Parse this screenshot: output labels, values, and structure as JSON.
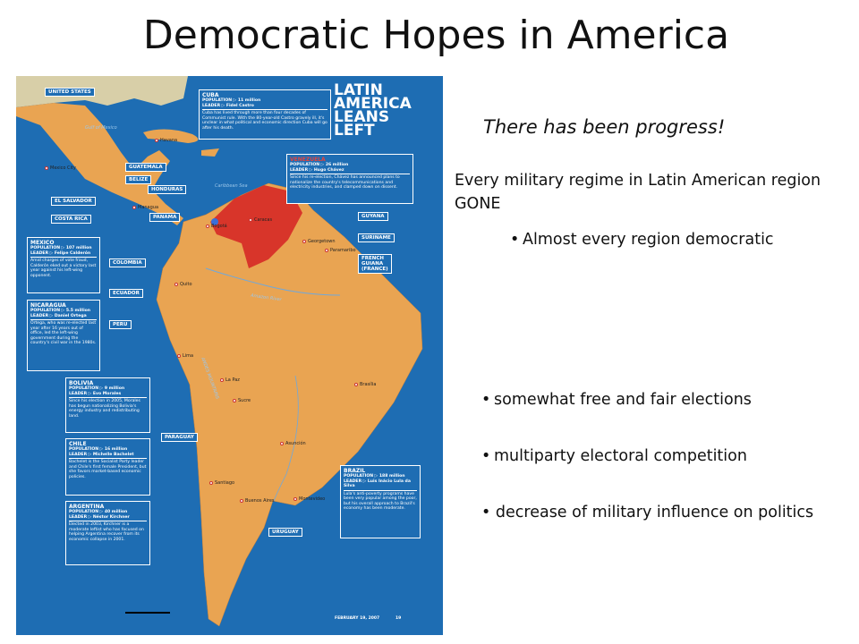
{
  "title": "Democratic Hopes in America",
  "map": {
    "headline": [
      "LATIN",
      "AMERICA",
      "LEANS",
      "LEFT"
    ],
    "date": "FEBRUARY 19, 2007",
    "page": "19",
    "labels": [
      "UNITED STATES",
      "GUATEMALA",
      "BELIZE",
      "HONDURAS",
      "EL SALVADOR",
      "COSTA RICA",
      "PANAMA",
      "GUYANA",
      "SURINAME",
      "FRENCH GUIANA (FRANCE)",
      "COLOMBIA",
      "ECUADOR",
      "PERU",
      "PARAGUAY",
      "URUGUAY"
    ],
    "cities": [
      "Havana",
      "Mexico City",
      "Managua",
      "Caracas",
      "Bogotá",
      "Quito",
      "Lima",
      "La Paz",
      "Sucre",
      "Georgetown",
      "Paramaribo",
      "Brasília",
      "Asunción",
      "Santiago",
      "Buenos Aires",
      "Montevideo"
    ],
    "water": [
      "Gulf of Mexico",
      "Caribbean Sea",
      "Amazon River",
      "ANDES MOUNTAINS"
    ],
    "boxes": [
      {
        "name": "CUBA",
        "population": "POPULATION ▷ 11 million",
        "leader": "LEADER ▷ Fidel Castro",
        "text": "Cuba has lived through more than four decades of Communist rule. With the 80-year-old Castro gravely ill, it's unclear in what political and economic direction Cuba will go after his death."
      },
      {
        "name": "VENEZUELA",
        "population": "POPULATION ▷ 26 million",
        "leader": "LEADER ▷ Hugo Chávez",
        "text": "Since his re-election, Chávez has announced plans to nationalize the country's telecommunications and electricity industries, and clamped down on dissent."
      },
      {
        "name": "MEXICO",
        "population": "POPULATION ▷ 107 million",
        "leader": "LEADER ▷ Felipe Calderón",
        "text": "Amid charges of vote fraud, Calderón eked out a victory last year against his left-wing opponent."
      },
      {
        "name": "NICARAGUA",
        "population": "POPULATION ▷ 5.5 million",
        "leader": "LEADER ▷ Daniel Ortega",
        "text": "Ortega, who was re-elected last year after 16 years out of office, led the left-wing government during the country's civil war in the 1980s."
      },
      {
        "name": "BOLIVIA",
        "population": "POPULATION ▷ 9 million",
        "leader": "LEADER ▷ Evo Morales",
        "text": "Since his election in 2005, Morales has begun nationalizing Bolivia's energy industry and redistributing land."
      },
      {
        "name": "CHILE",
        "population": "POPULATION ▷ 16 million",
        "leader": "LEADER ▷ Michelle Bachelet",
        "text": "Bachelet is the Socialist Party leader and Chile's first female President, but she favors market-based economic policies."
      },
      {
        "name": "ARGENTINA",
        "population": "POPULATION ▷ 40 million",
        "leader": "LEADER ▷ Néstor Kirchner",
        "text": "Elected in 2003, Kirchner is a moderate leftist who has focused on helping Argentina recover from its economic collapse in 2001."
      },
      {
        "name": "BRAZIL",
        "population": "POPULATION ▷ 188 million",
        "leader": "LEADER ▷ Luis Inácio Lula da Silva",
        "text": "Lula's anti-poverty programs have been very popular among the poor, but his overall approach to Brazil's economy has been moderate."
      }
    ]
  },
  "content": {
    "subtitle": "There has been progress!",
    "lead": "Every military regime in Latin American region GONE",
    "sub_bullet": "Almost every region democratic",
    "bullets": [
      "somewhat free and fair elections",
      "multiparty electoral competition",
      "decrease of military influence on politics"
    ]
  }
}
